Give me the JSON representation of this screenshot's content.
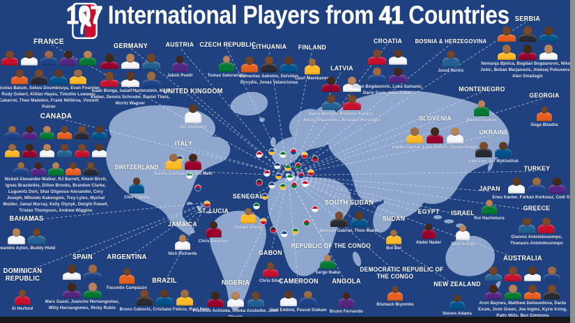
{
  "header": {
    "players_count": "107",
    "text_between": "International Players from",
    "countries_count": "41",
    "text_end": "Countries",
    "logo_name": "NBA"
  },
  "colors": {
    "background": "#20417F",
    "map_land": "#8FA7CD",
    "dashed_line": "#DCE5F6",
    "label_text": "#FFFFFF",
    "names_text": "#E6ECF9",
    "bottom_bar": "#181818",
    "side_bar": "#8F8F8F",
    "logo_blue": "#1D428A",
    "logo_red": "#C8102E",
    "skin_tones": [
      "#7A4A2B",
      "#5C3A23",
      "#9C6B43",
      "#41291A",
      "#B9835A",
      "#6E452A"
    ],
    "jersey_colors": [
      "#C8102E",
      "#F4F6FA",
      "#1D428A",
      "#552583",
      "#007A33",
      "#E56020",
      "#2A2A33",
      "#00538C",
      "#FDB927",
      "#98002E",
      "#F4F6FA",
      "#236192"
    ],
    "flag_colors": [
      [
        "#C8102E",
        "#F4F6FA"
      ],
      [
        "#1D428A",
        "#FDB927"
      ],
      [
        "#007A33",
        "#F4F6FA"
      ],
      [
        "#C8102E",
        "#1D428A"
      ],
      [
        "#FDB927",
        "#C8102E"
      ],
      [
        "#2A2A33",
        "#C8102E"
      ],
      [
        "#1D428A",
        "#F4F6FA"
      ],
      [
        "#007A33",
        "#FDB927"
      ],
      [
        "#C8102E",
        "#007A33"
      ]
    ]
  },
  "countries": [
    {
      "label": "FRANCE",
      "players": "Nicolas Batum, Sekou Doumbouya, Evan Fournier, Rudy Gobert, Killian Hayes, Timothe Luwawu-Cabarrot, Theo Maledon, Frank Ntilikina, Vincent Poirier"
    },
    {
      "label": "GERMANY",
      "players": "Isaac Bonga, Isaiah Hartenstein, Maxi Kleber, Dennis Schroder, Daniel Theis, Moritz Wagner"
    },
    {
      "label": "AUSTRIA",
      "players": "Jakob Poeltl"
    },
    {
      "label": "CZECH REPUBLIC",
      "players": "Tomas Satoransky"
    },
    {
      "label": "LITHUANIA",
      "players": "Domantas Sabonis, Deividas Sirvydis, Jonas Valanciunas"
    },
    {
      "label": "FINLAND",
      "players": "Lauri Markkanen"
    },
    {
      "label": "LATVIA",
      "players": "Davis Bertans, Rodions Kurucs, Anzejs Pasecniks, Kristaps Porzingis"
    },
    {
      "label": "UNITED KINGDOM",
      "players": "OG Anunoby"
    },
    {
      "label": "CANADA",
      "players": "Nickeil Alexander-Walker, RJ Barrett, Khem Birch, Ignas Brazdeikis, Dillon Brooks, Brandon Clarke, Luguentz Dort, Shai Gilgeous-Alexander, Cory Joseph, Mfiondu Kabengele, Trey Lyles, Mychal Mulder, Jamal Murray, Kelly Olynyk, Dwight Powell, Tristan Thompson, Andrew Wiggins"
    },
    {
      "label": "SWITZERLAND",
      "players": "Clint Capela"
    },
    {
      "label": "ITALY",
      "players": "Danilo Gallinari, Nicolo Melli"
    },
    {
      "label": "BAHAMAS",
      "players": "Deandre Ayton, Buddy Hield"
    },
    {
      "label": "DOMINICAN\nREPUBLIC",
      "players": "Al Horford"
    },
    {
      "label": "SPAIN",
      "players": "Marc Gasol, Juancho Hernangomez, Willy Hernangomez, Ricky Rubio"
    },
    {
      "label": "ARGENTINA",
      "players": "Facundo Campazzo"
    },
    {
      "label": "BRAZIL",
      "players": "Bruno Caboclo, Cristiano Felicio, Raul Neto"
    },
    {
      "label": "NIGERIA",
      "players": "Precious Achiuwa, Udoka Azubuike, Josh Okogie"
    },
    {
      "label": "GABON",
      "players": "Chris Silva"
    },
    {
      "label": "CAMEROON",
      "players": "Joel Embiid, Pascal Siakam"
    },
    {
      "label": "ANGOLA",
      "players": "Bruno Fernando"
    },
    {
      "label": "REPUBLIC OF THE CONGO",
      "players": "Serge Ibaka"
    },
    {
      "label": "DEMOCRATIC REPUBLIC OF\nTHE CONGO",
      "players": "Bismack Biyombo"
    },
    {
      "label": "SOUTH SUDAN",
      "players": "Wenyen Gabriel, Thon Maker"
    },
    {
      "label": "SUDAN",
      "players": "Bol Bol"
    },
    {
      "label": "EGYPT",
      "players": "Abdel Nader"
    },
    {
      "label": "ISRAEL",
      "players": "Deni Avdija"
    },
    {
      "label": "GREECE",
      "players": "Giannis Antetokounmpo, Thanasis Antetokounmpo"
    },
    {
      "label": "TURKEY",
      "players": "Enes Kanter, Furkan Korkmaz, Cedi Osman"
    },
    {
      "label": "JAPAN",
      "players": "Rui Hachimura"
    },
    {
      "label": "SERBIA",
      "players": "Nemanja Bjelica, Bogdan Bogdanovic, Nikola Jokic, Boban Marjanovic, Aleksej Pokusevski, Alen Smailagic"
    },
    {
      "label": "BOSNIA & HERZEGOVINA",
      "players": "Jusuf Nurkic"
    },
    {
      "label": "CROATIA",
      "players": "Bojan Bogdanovic, Luka Samanic, Dario Saric, Ivica Zubac"
    },
    {
      "label": "MONTENEGRO",
      "players": "Nikola Vucevic"
    },
    {
      "label": "GEORGIA",
      "players": "Goga Bitadze"
    },
    {
      "label": "UKRAINE",
      "players": "Alex Len, Svi Mykhailiuk"
    },
    {
      "label": "SLOVENIA",
      "players": "Vlatko Cancar, Luka Doncic, Goran Dragic"
    },
    {
      "label": "AUSTRALIA",
      "players": "Aron Baynes, Matthew Dellavedova, Dante Exum, Josh Green, Joe Ingles, Kyrie Irving, Patty Mills, Ben Simmons"
    },
    {
      "label": "NEW ZEALAND",
      "players": "Steven Adams"
    },
    {
      "label": "SENEGAL",
      "players": "Gorgui Dieng"
    },
    {
      "label": "ST. LUCIA",
      "players": "Chris Boucher"
    },
    {
      "label": "JAMAICA",
      "players": "Nick Richards"
    }
  ]
}
